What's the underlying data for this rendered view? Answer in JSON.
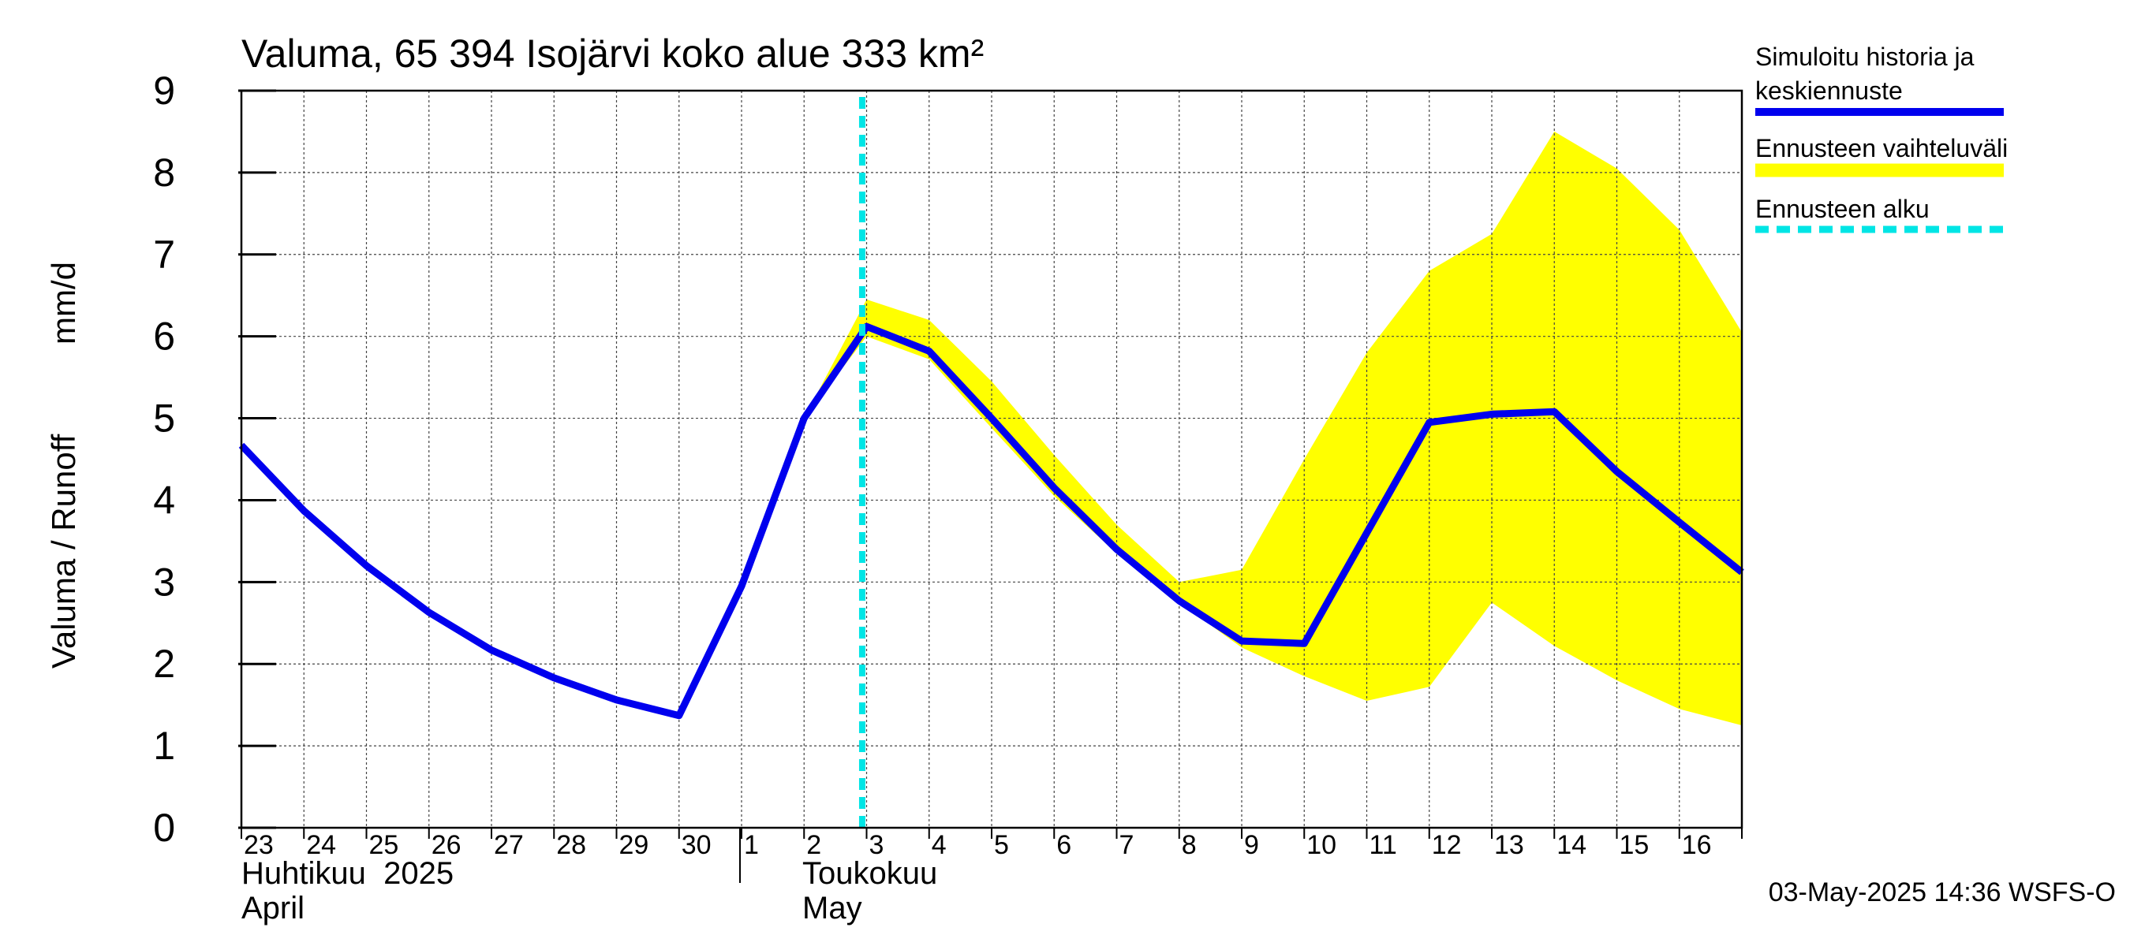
{
  "chart_data": {
    "type": "line",
    "title": "Valuma, 65 394 Isojärvi koko alue 333 km²",
    "ylabel_fi": "Valuma / Runoff",
    "ylabel_unit": "mm/d",
    "ylim": [
      0,
      9
    ],
    "yticks": [
      0,
      1,
      2,
      3,
      4,
      5,
      6,
      7,
      8,
      9
    ],
    "x_range": [
      "2025-04-23",
      "2025-05-17"
    ],
    "x_tick_labels": [
      "23",
      "24",
      "25",
      "26",
      "27",
      "28",
      "29",
      "30",
      "1",
      "2",
      "3",
      "4",
      "5",
      "6",
      "7",
      "8",
      "9",
      "10",
      "11",
      "12",
      "13",
      "14",
      "15",
      "16"
    ],
    "month_labels": [
      {
        "fi": "Huhtikuu  2025",
        "en": "April"
      },
      {
        "fi": "Toukokuu",
        "en": "May"
      }
    ],
    "forecast_start": "2025-05-03",
    "grid": true,
    "legend_position": "right",
    "legend": [
      {
        "label_lines": [
          "Simuloitu historia ja",
          "keskiennuste"
        ],
        "color": "#0000ee",
        "style": "solid"
      },
      {
        "label_lines": [
          "Ennusteen vaihteluväli"
        ],
        "color": "#ffff00",
        "style": "band"
      },
      {
        "label_lines": [
          "Ennusteen alku"
        ],
        "color": "#00e5e5",
        "style": "dashed"
      }
    ],
    "series": [
      {
        "name": "Simuloitu historia ja keskiennuste",
        "color": "#0000ee",
        "x": [
          "2025-04-23",
          "2025-04-24",
          "2025-04-25",
          "2025-04-26",
          "2025-04-27",
          "2025-04-28",
          "2025-04-29",
          "2025-04-30",
          "2025-05-01",
          "2025-05-02",
          "2025-05-03",
          "2025-05-04",
          "2025-05-05",
          "2025-05-06",
          "2025-05-07",
          "2025-05-08",
          "2025-05-09",
          "2025-05-10",
          "2025-05-11",
          "2025-05-12",
          "2025-05-13",
          "2025-05-14",
          "2025-05-15",
          "2025-05-16",
          "2025-05-17"
        ],
        "y": [
          4.67,
          3.87,
          3.2,
          2.63,
          2.17,
          1.83,
          1.56,
          1.37,
          2.95,
          5.0,
          6.12,
          5.82,
          5.0,
          4.15,
          3.4,
          2.77,
          2.28,
          2.25,
          3.6,
          4.95,
          5.05,
          5.08,
          4.35,
          3.73,
          3.12
        ]
      },
      {
        "name": "Ennusteen vaihteluväli",
        "color": "#ffff00",
        "x": [
          "2025-05-02",
          "2025-05-03",
          "2025-05-04",
          "2025-05-05",
          "2025-05-06",
          "2025-05-07",
          "2025-05-08",
          "2025-05-09",
          "2025-05-10",
          "2025-05-11",
          "2025-05-12",
          "2025-05-13",
          "2025-05-14",
          "2025-05-15",
          "2025-05-16",
          "2025-05-17"
        ],
        "upper": [
          5.0,
          6.45,
          6.2,
          5.45,
          4.55,
          3.7,
          3.0,
          3.15,
          4.5,
          5.8,
          6.8,
          7.25,
          8.5,
          8.05,
          7.3,
          6.05
        ],
        "lower": [
          5.0,
          6.0,
          5.72,
          4.88,
          4.05,
          3.35,
          2.75,
          2.2,
          1.85,
          1.55,
          1.72,
          2.75,
          2.22,
          1.8,
          1.45,
          1.25
        ]
      }
    ]
  },
  "footer": {
    "timestamp": "03-May-2025 14:36 WSFS-O"
  }
}
